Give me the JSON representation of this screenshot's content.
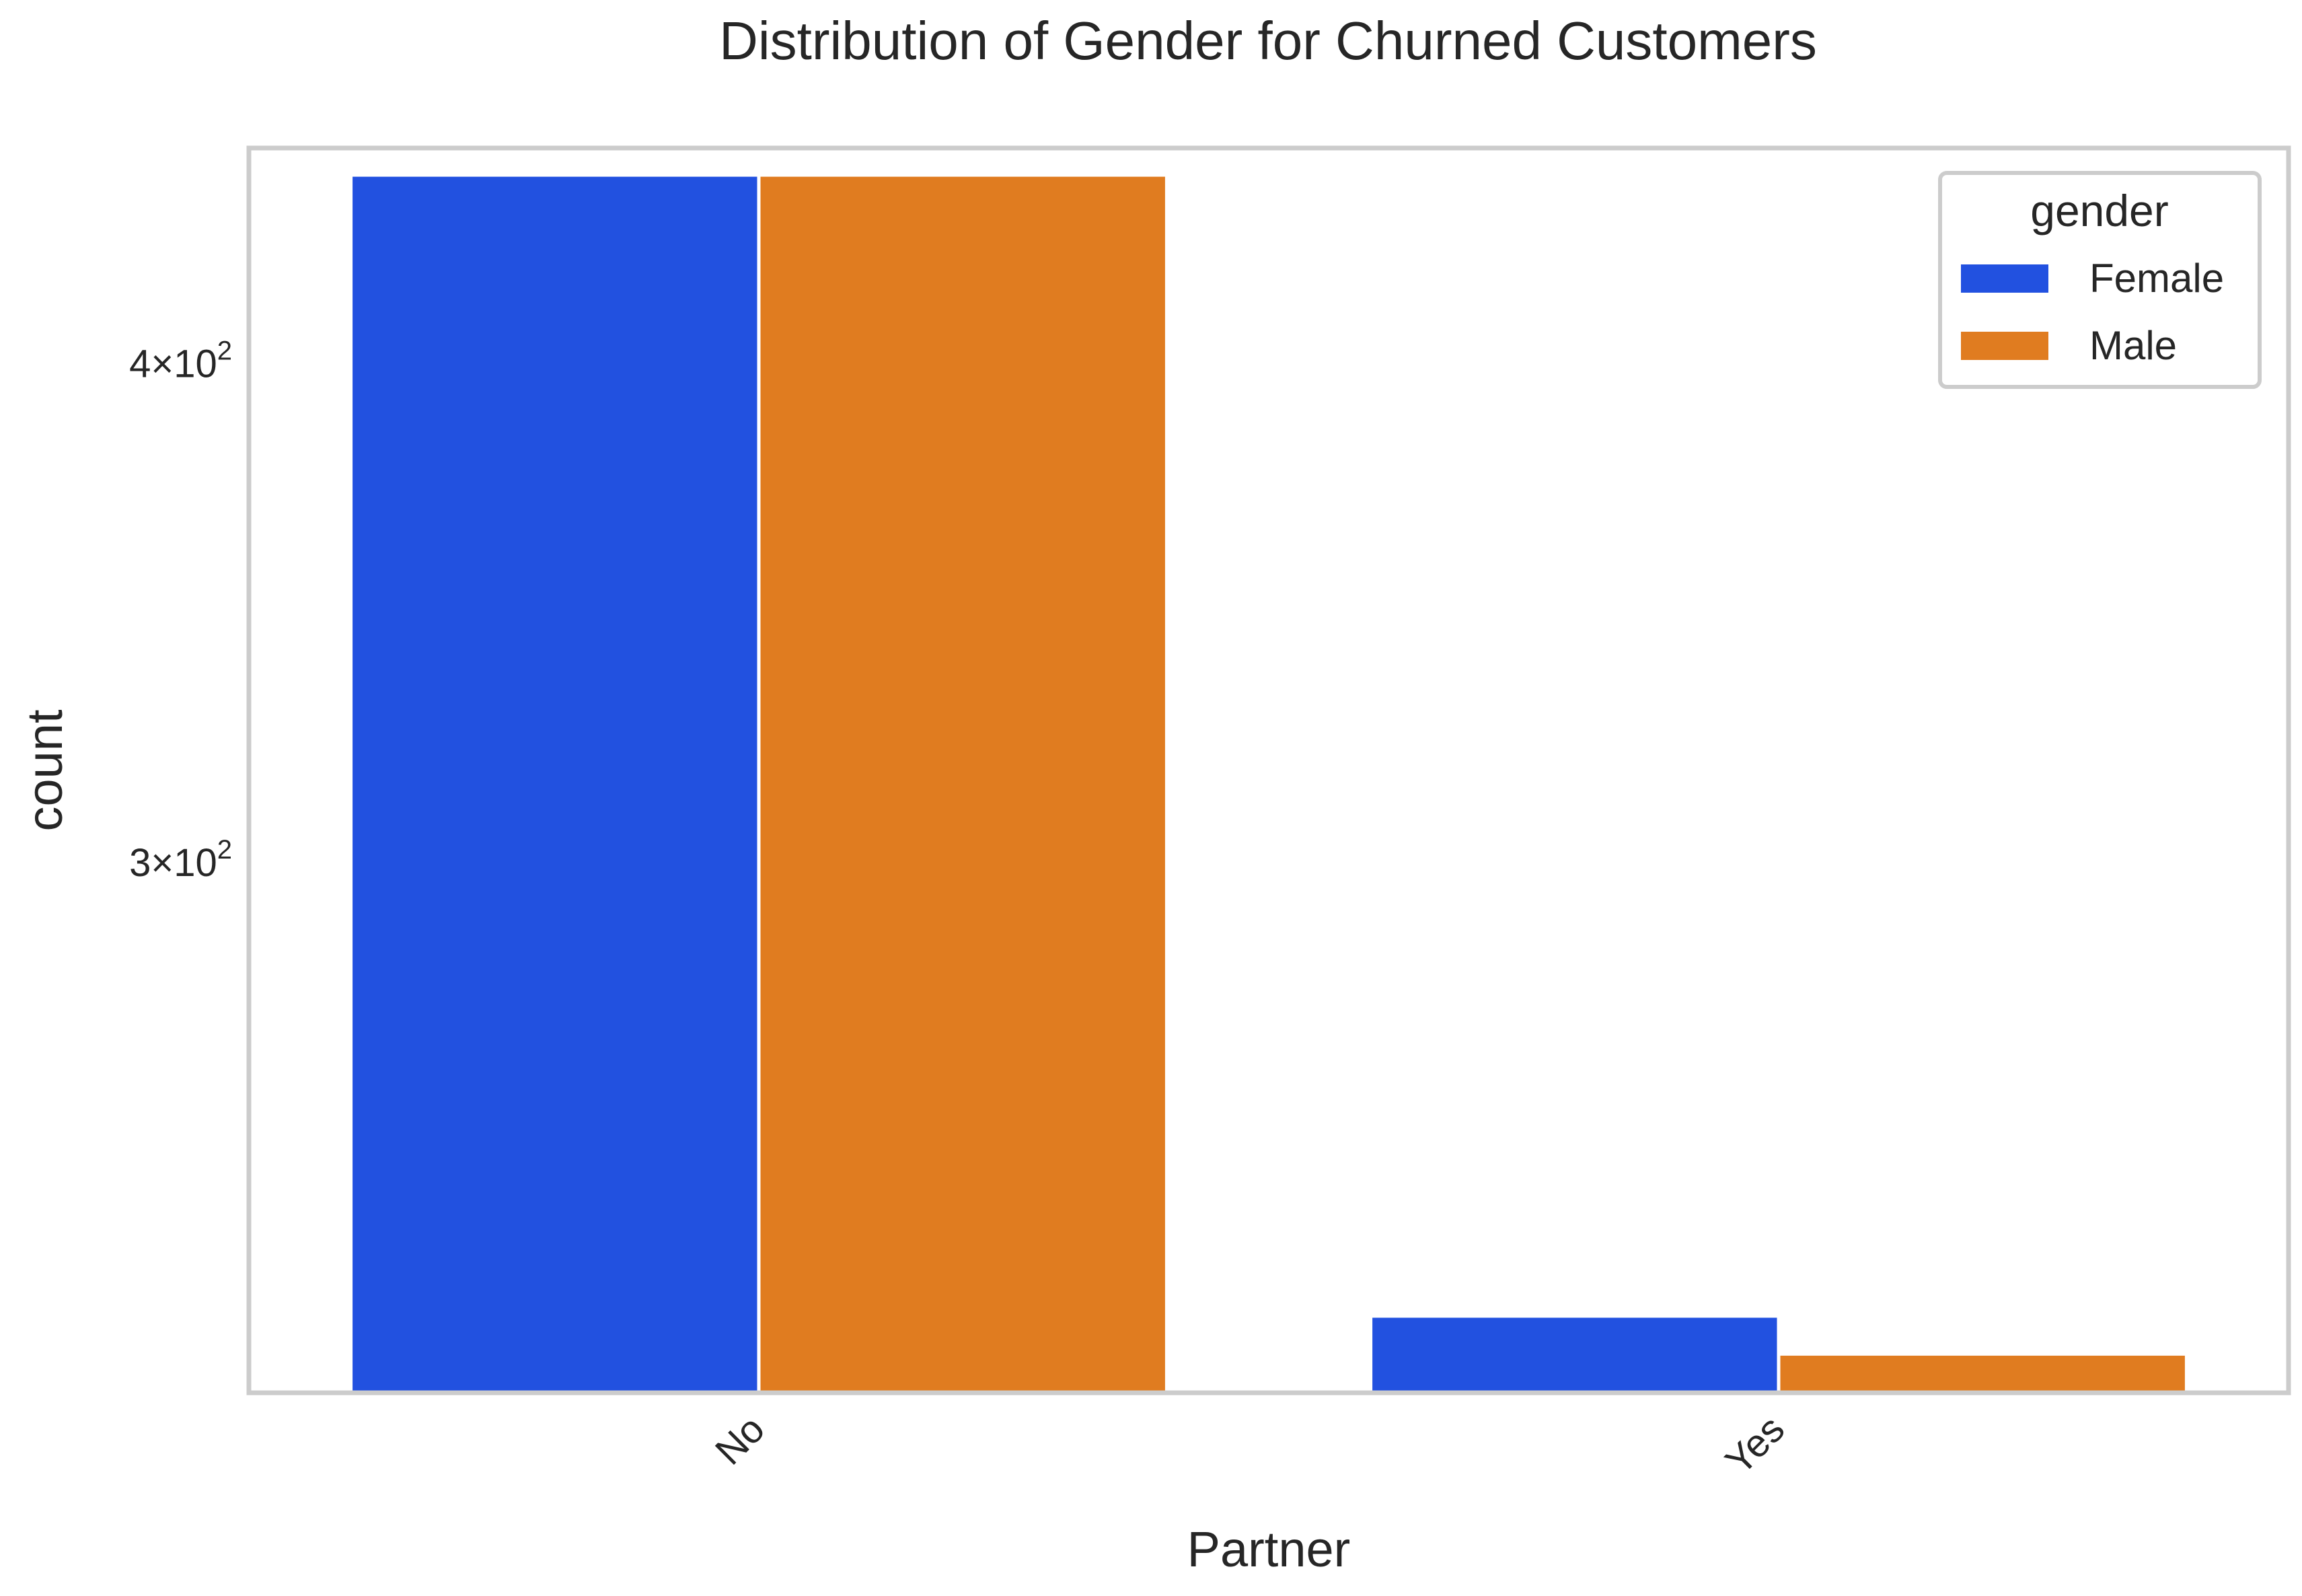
{
  "chart_data": {
    "type": "bar",
    "title": "Distribution of Gender for Churned Customers",
    "xlabel": "Partner",
    "ylabel": "count",
    "categories": [
      "No",
      "Yes"
    ],
    "series": [
      {
        "name": "Female",
        "color": "#2251e0",
        "values": [
          446,
          231
        ]
      },
      {
        "name": "Male",
        "color": "#e07c20",
        "values": [
          446,
          226
        ]
      }
    ],
    "yscale": "log",
    "ylim": [
      221,
      453
    ],
    "yticks": [
      {
        "value": 300,
        "mantissa": "3",
        "base": "10",
        "exponent": "2"
      },
      {
        "value": 400,
        "mantissa": "4",
        "base": "10",
        "exponent": "2"
      }
    ],
    "xtick_rotation_deg": -45,
    "legend": {
      "title": "gender",
      "placement": "top-right"
    },
    "grid": false
  }
}
